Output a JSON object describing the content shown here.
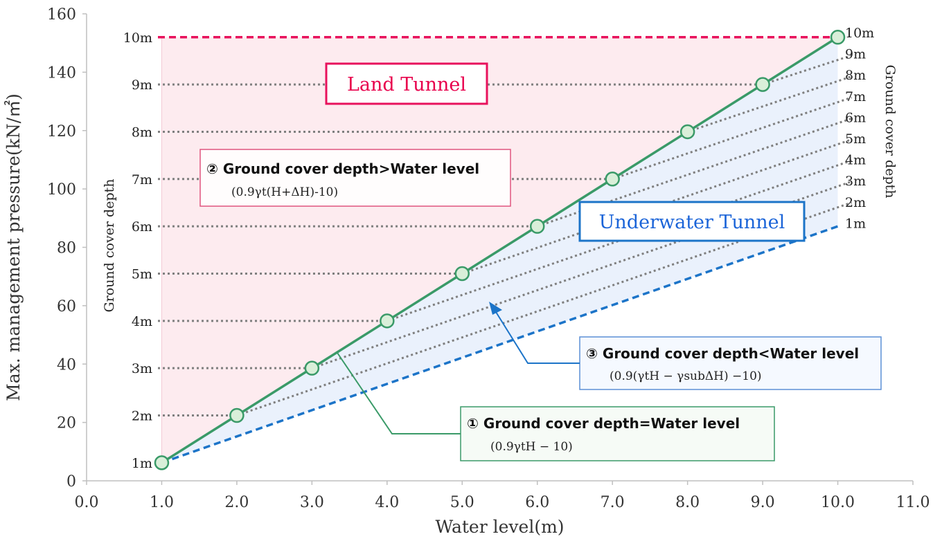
{
  "chart_data": {
    "type": "line",
    "xlabel": "Water level(m)",
    "ylabel": "Max. management pressure(kN/㎡)",
    "xlim": [
      0.0,
      11.0
    ],
    "ylim": [
      0,
      160
    ],
    "x_ticks": [
      "0.0",
      "1.0",
      "2.0",
      "3.0",
      "4.0",
      "5.0",
      "6.0",
      "7.0",
      "8.0",
      "9.0",
      "10.0",
      "11.0"
    ],
    "y_ticks": [
      "0",
      "20",
      "40",
      "60",
      "80",
      "100",
      "120",
      "140",
      "160"
    ],
    "left_axis_title": "Ground cover depth",
    "right_axis_title": "Ground cover depth",
    "left_depth_labels": [
      {
        "label": "1m",
        "y": 6.2
      },
      {
        "label": "2m",
        "y": 22.4
      },
      {
        "label": "3m",
        "y": 38.6
      },
      {
        "label": "4m",
        "y": 54.8
      },
      {
        "label": "5m",
        "y": 71.0
      },
      {
        "label": "6m",
        "y": 87.2
      },
      {
        "label": "7m",
        "y": 103.4
      },
      {
        "label": "8m",
        "y": 119.6
      },
      {
        "label": "9m",
        "y": 135.8
      },
      {
        "label": "10m",
        "y": 152.0
      }
    ],
    "right_depth_labels": [
      "10m",
      "9m",
      "8m",
      "7m",
      "6m",
      "5m",
      "4m",
      "3m",
      "2m",
      "1m"
    ],
    "equal_line": {
      "x": [
        1,
        2,
        3,
        4,
        5,
        6,
        7,
        8,
        9,
        10
      ],
      "y": [
        6.2,
        22.4,
        38.6,
        54.8,
        71.0,
        87.2,
        103.4,
        119.6,
        135.8,
        152.0
      ]
    },
    "underwater_1m_line": {
      "x": [
        1,
        10
      ],
      "y": [
        6.2,
        87.2
      ]
    },
    "underwater_depth_lines": [
      {
        "depth": 2,
        "start": [
          2,
          22.4
        ],
        "end": [
          10,
          94.4
        ]
      },
      {
        "depth": 3,
        "start": [
          3,
          38.6
        ],
        "end": [
          10,
          101.6
        ]
      },
      {
        "depth": 4,
        "start": [
          4,
          54.8
        ],
        "end": [
          10,
          108.8
        ]
      },
      {
        "depth": 5,
        "start": [
          5,
          71.0
        ],
        "end": [
          10,
          116.0
        ]
      },
      {
        "depth": 6,
        "start": [
          6,
          87.2
        ],
        "end": [
          10,
          123.2
        ]
      },
      {
        "depth": 7,
        "start": [
          7,
          103.4
        ],
        "end": [
          10,
          130.4
        ]
      },
      {
        "depth": 8,
        "start": [
          8,
          119.6
        ],
        "end": [
          10,
          137.6
        ]
      },
      {
        "depth": 9,
        "start": [
          9,
          135.8
        ],
        "end": [
          10,
          144.8
        ]
      }
    ],
    "colors": {
      "equal_line": "#3a9a68",
      "marker_fill": "#d9efd9",
      "underwater_line": "#1c74c8",
      "top_line": "#e8125c",
      "land_fill": "#fdebef",
      "water_fill": "#eaf1fc",
      "dotted": "#7f7f7f"
    },
    "land_label": "Land Tunnel",
    "underwater_label": "Underwater Tunnel",
    "annotations": [
      {
        "title": "② Ground cover depth>Water level",
        "formula": "(0.9γt(H+ΔH)-10)"
      },
      {
        "title": "③ Ground cover depth<Water level",
        "formula": "(0.9(γtH − γsubΔH) −10)"
      },
      {
        "title": "① Ground cover depth=Water level",
        "formula": "(0.9γtH − 10)"
      }
    ]
  }
}
